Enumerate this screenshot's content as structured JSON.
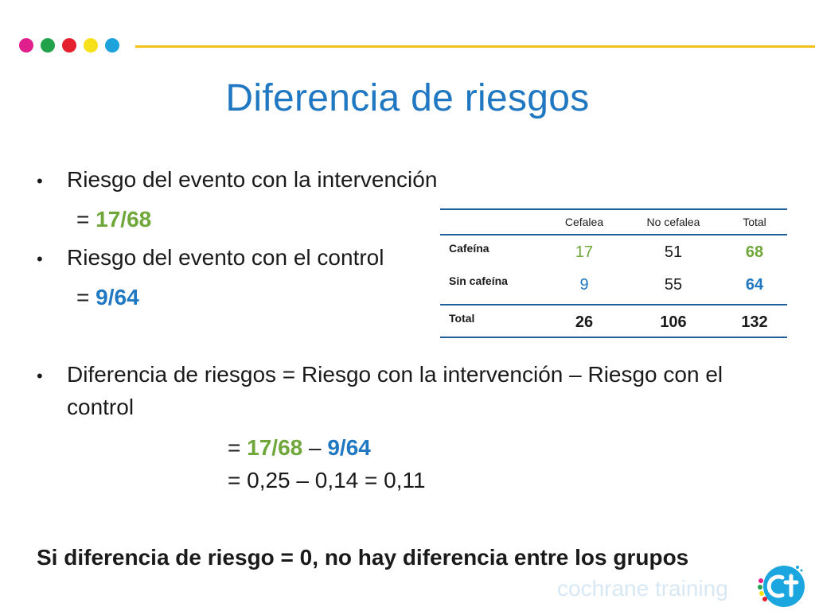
{
  "header": {
    "dot_colors": [
      "#e01e8c",
      "#22a24a",
      "#e4202e",
      "#f7e11a",
      "#1da2dc"
    ],
    "line_color": "#f2c21b"
  },
  "title": "Diferencia de riesgos",
  "bullets": {
    "b1_text": "Riesgo del evento con la intervención",
    "b1_value_prefix": "= ",
    "b1_value": "17/68",
    "b2_text": "Riesgo del evento con el control",
    "b2_value_prefix": "= ",
    "b2_value": "9/64",
    "b3_line1": "Diferencia de riesgos = Riesgo con la intervención – Riesgo con el",
    "b3_line2": "control",
    "calc1_prefix": "= ",
    "calc1_a": "17/68",
    "calc1_op": " – ",
    "calc1_b": "9/64",
    "calc2": "= 0,25 – 0,14 = 0,11"
  },
  "conclusion": "Si diferencia de riesgo = 0, no hay diferencia entre los grupos",
  "table": {
    "headers": [
      "Cefalea",
      "No cefalea",
      "Total"
    ],
    "rows": [
      {
        "label": "Cafeína",
        "values": [
          "17",
          "51",
          "68"
        ]
      },
      {
        "label": "Sin cafeína",
        "values": [
          "9",
          "55",
          "64"
        ]
      }
    ],
    "total": {
      "label": "Total",
      "values": [
        "26",
        "106",
        "132"
      ]
    }
  },
  "footer": {
    "brand_text": "cochrane training",
    "logo_icon": "cochrane-training-logo-icon"
  },
  "colors": {
    "title_blue": "#1f78c1",
    "value_green": "#6fa73a",
    "value_blue": "#1f78c1",
    "rule_blue": "#1f5f9a"
  }
}
